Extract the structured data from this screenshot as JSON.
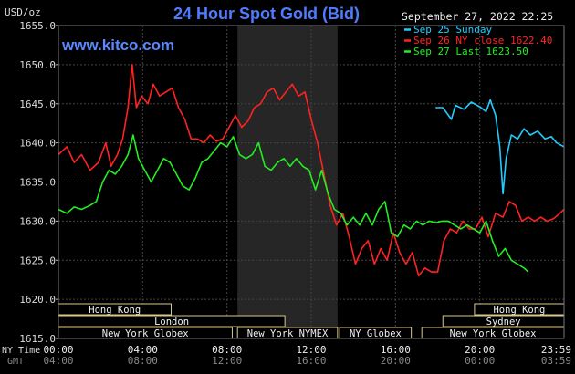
{
  "header": {
    "title": "24 Hour Spot Gold (Bid)",
    "unit_label": "USD/oz",
    "website": "www.kitco.com",
    "timestamp": "September 27, 2022 22:25"
  },
  "legend": [
    {
      "text": "Sep 25 Sunday",
      "color": "#22ccff"
    },
    {
      "text": "Sep 26 NY close 1622.40",
      "color": "#ff2222"
    },
    {
      "text": "Sep 27 Last 1623.50",
      "color": "#22ee22"
    }
  ],
  "sessions": {
    "row1": [
      {
        "label": "Hong Kong",
        "start": 0,
        "end": 10.7
      },
      {
        "label": "Hong Kong",
        "start": 39.5,
        "end": 48
      }
    ],
    "row2": [
      {
        "label": "London",
        "start": 0,
        "end": 21.5
      },
      {
        "label": "Sydney",
        "start": 36.5,
        "end": 48
      }
    ],
    "row3": [
      {
        "label": "New York Globex",
        "start": 0,
        "end": 16.5
      },
      {
        "label": "New York NYMEX",
        "start": 17,
        "end": 26.5
      },
      {
        "label": "NY Globex",
        "start": 26.7,
        "end": 33.5
      },
      {
        "label": "New York Globex",
        "start": 34.5,
        "end": 48
      }
    ]
  },
  "time_axis": {
    "row_labels": [
      "NY Time",
      "GMT"
    ],
    "ny_ticks": [
      "00:00",
      "04:00",
      "08:00",
      "12:00",
      "16:00",
      "20:00",
      "23:59"
    ],
    "gmt_ticks": [
      "04:00",
      "08:00",
      "12:00",
      "16:00",
      "20:00",
      "00:00",
      "03:59"
    ]
  },
  "chart_data": {
    "type": "line",
    "title": "24 Hour Spot Gold (Bid)",
    "ylabel": "USD/oz",
    "ylim": [
      1615,
      1655
    ],
    "xlim": [
      0,
      48
    ],
    "x_unit": "half-hour intervals since 00:00 NY Time",
    "yticks": [
      "1615.0",
      "1620.0",
      "1625.0",
      "1630.0",
      "1635.0",
      "1640.0",
      "1645.0",
      "1650.0",
      "1655.0"
    ],
    "grid": true,
    "legend_position": "top-right",
    "nymex_shading": [
      17,
      26.5
    ],
    "series": [
      {
        "name": "Sep 25 Sunday",
        "color": "#22ccff",
        "points": [
          [
            35.8,
            1644.5
          ],
          [
            36.5,
            1644.5
          ],
          [
            37.3,
            1643.0
          ],
          [
            37.7,
            1644.8
          ],
          [
            38.5,
            1644.3
          ],
          [
            39.2,
            1645.2
          ],
          [
            40.0,
            1644.6
          ],
          [
            40.6,
            1644.0
          ],
          [
            41.0,
            1645.5
          ],
          [
            41.5,
            1643.5
          ],
          [
            41.9,
            1639.5
          ],
          [
            42.2,
            1633.5
          ],
          [
            42.5,
            1638.0
          ],
          [
            43.0,
            1641.0
          ],
          [
            43.6,
            1640.5
          ],
          [
            44.2,
            1641.8
          ],
          [
            44.8,
            1641.0
          ],
          [
            45.5,
            1641.5
          ],
          [
            46.2,
            1640.5
          ],
          [
            46.8,
            1640.8
          ],
          [
            47.3,
            1640.0
          ],
          [
            48.0,
            1639.5
          ]
        ]
      },
      {
        "name": "Sep 26 NY close 1622.40",
        "color": "#ff2222",
        "points": [
          [
            0,
            1638.5
          ],
          [
            0.8,
            1639.5
          ],
          [
            1.5,
            1637.5
          ],
          [
            2.2,
            1638.5
          ],
          [
            3.0,
            1636.5
          ],
          [
            3.8,
            1637.5
          ],
          [
            4.5,
            1640.0
          ],
          [
            5.0,
            1637.0
          ],
          [
            5.6,
            1638.5
          ],
          [
            6.1,
            1640.5
          ],
          [
            6.6,
            1644.5
          ],
          [
            7.0,
            1650.0
          ],
          [
            7.4,
            1644.5
          ],
          [
            7.9,
            1646.0
          ],
          [
            8.5,
            1645.0
          ],
          [
            9.0,
            1647.5
          ],
          [
            9.6,
            1646.0
          ],
          [
            10.2,
            1646.5
          ],
          [
            10.8,
            1647.0
          ],
          [
            11.4,
            1644.5
          ],
          [
            12.0,
            1643.0
          ],
          [
            12.6,
            1640.5
          ],
          [
            13.2,
            1640.5
          ],
          [
            13.8,
            1640.0
          ],
          [
            14.4,
            1641.0
          ],
          [
            15.0,
            1640.2
          ],
          [
            15.6,
            1640.5
          ],
          [
            16.2,
            1642.0
          ],
          [
            16.8,
            1643.5
          ],
          [
            17.4,
            1642.0
          ],
          [
            18.0,
            1642.8
          ],
          [
            18.6,
            1644.5
          ],
          [
            19.2,
            1645.0
          ],
          [
            19.8,
            1646.5
          ],
          [
            20.4,
            1647.0
          ],
          [
            21.0,
            1645.5
          ],
          [
            21.6,
            1646.5
          ],
          [
            22.2,
            1647.5
          ],
          [
            22.8,
            1646.0
          ],
          [
            23.4,
            1646.5
          ],
          [
            24.0,
            1643.0
          ],
          [
            24.6,
            1640.0
          ],
          [
            25.2,
            1636.0
          ],
          [
            25.8,
            1632.0
          ],
          [
            26.4,
            1629.5
          ],
          [
            27.0,
            1631.0
          ],
          [
            27.6,
            1628.0
          ],
          [
            28.2,
            1624.5
          ],
          [
            28.8,
            1626.5
          ],
          [
            29.4,
            1627.5
          ],
          [
            30.0,
            1624.5
          ],
          [
            30.6,
            1626.5
          ],
          [
            31.2,
            1625.0
          ],
          [
            31.8,
            1628.5
          ],
          [
            32.4,
            1626.0
          ],
          [
            33.0,
            1624.5
          ],
          [
            33.6,
            1626.0
          ],
          [
            34.2,
            1623.0
          ],
          [
            34.8,
            1624.0
          ],
          [
            35.4,
            1623.5
          ],
          [
            36.0,
            1623.5
          ],
          [
            36.6,
            1627.5
          ],
          [
            37.2,
            1629.0
          ],
          [
            37.8,
            1628.5
          ],
          [
            38.4,
            1630.0
          ],
          [
            39.0,
            1629.0
          ],
          [
            39.6,
            1629.0
          ],
          [
            40.2,
            1630.5
          ],
          [
            40.8,
            1628.0
          ],
          [
            41.5,
            1631.0
          ],
          [
            42.2,
            1630.5
          ],
          [
            42.8,
            1632.5
          ],
          [
            43.4,
            1632.0
          ],
          [
            44.0,
            1630.0
          ],
          [
            44.6,
            1630.5
          ],
          [
            45.2,
            1630.0
          ],
          [
            45.8,
            1630.5
          ],
          [
            46.4,
            1630.0
          ],
          [
            47.0,
            1630.3
          ],
          [
            47.6,
            1631.0
          ],
          [
            48.0,
            1631.5
          ]
        ]
      },
      {
        "name": "Sep 27 Last 1623.50",
        "color": "#22ee22",
        "points": [
          [
            0,
            1631.5
          ],
          [
            0.8,
            1631.0
          ],
          [
            1.5,
            1631.8
          ],
          [
            2.2,
            1631.5
          ],
          [
            3.0,
            1632.0
          ],
          [
            3.6,
            1632.5
          ],
          [
            4.2,
            1635.0
          ],
          [
            4.8,
            1636.5
          ],
          [
            5.4,
            1636.0
          ],
          [
            6.0,
            1637.0
          ],
          [
            6.6,
            1638.5
          ],
          [
            7.1,
            1641.0
          ],
          [
            7.6,
            1638.0
          ],
          [
            8.2,
            1636.5
          ],
          [
            8.8,
            1635.0
          ],
          [
            9.4,
            1636.5
          ],
          [
            10.0,
            1638.0
          ],
          [
            10.6,
            1637.5
          ],
          [
            11.2,
            1636.0
          ],
          [
            11.8,
            1634.5
          ],
          [
            12.4,
            1634.0
          ],
          [
            13.0,
            1635.5
          ],
          [
            13.6,
            1637.5
          ],
          [
            14.2,
            1638.0
          ],
          [
            14.8,
            1639.0
          ],
          [
            15.4,
            1640.0
          ],
          [
            16.0,
            1639.5
          ],
          [
            16.6,
            1640.8
          ],
          [
            17.2,
            1638.5
          ],
          [
            17.8,
            1638.0
          ],
          [
            18.4,
            1638.5
          ],
          [
            19.0,
            1640.0
          ],
          [
            19.6,
            1637.0
          ],
          [
            20.2,
            1636.5
          ],
          [
            20.8,
            1637.5
          ],
          [
            21.4,
            1638.0
          ],
          [
            22.0,
            1637.0
          ],
          [
            22.6,
            1638.0
          ],
          [
            23.2,
            1637.0
          ],
          [
            23.8,
            1636.5
          ],
          [
            24.4,
            1634.0
          ],
          [
            25.0,
            1636.5
          ],
          [
            25.6,
            1633.5
          ],
          [
            26.2,
            1631.5
          ],
          [
            26.8,
            1631.0
          ],
          [
            27.4,
            1629.5
          ],
          [
            28.0,
            1630.5
          ],
          [
            28.6,
            1629.5
          ],
          [
            29.2,
            1631.0
          ],
          [
            29.8,
            1629.5
          ],
          [
            30.4,
            1631.5
          ],
          [
            31.0,
            1632.5
          ],
          [
            31.6,
            1628.5
          ],
          [
            32.2,
            1628.0
          ],
          [
            32.8,
            1629.5
          ],
          [
            33.4,
            1629.0
          ],
          [
            34.0,
            1630.0
          ],
          [
            34.6,
            1629.5
          ],
          [
            35.2,
            1630.0
          ],
          [
            35.8,
            1629.8
          ],
          [
            36.4,
            1630.0
          ],
          [
            37.0,
            1630.0
          ],
          [
            37.6,
            1629.5
          ],
          [
            38.2,
            1629.0
          ],
          [
            38.8,
            1629.5
          ],
          [
            39.4,
            1629.0
          ],
          [
            40.0,
            1628.5
          ],
          [
            40.6,
            1630.0
          ],
          [
            41.2,
            1627.5
          ],
          [
            41.8,
            1625.5
          ],
          [
            42.4,
            1626.5
          ],
          [
            43.0,
            1625.0
          ],
          [
            43.6,
            1624.5
          ],
          [
            44.2,
            1624.0
          ],
          [
            44.6,
            1623.5
          ]
        ]
      }
    ]
  }
}
